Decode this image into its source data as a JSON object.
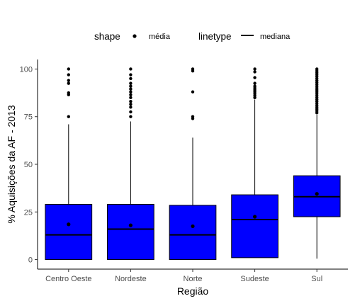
{
  "chart_data": {
    "type": "boxplot",
    "xlabel": "Região",
    "ylabel": "% Aquisições da AF - 2013",
    "ylim": [
      -5,
      105
    ],
    "yticks": [
      0,
      25,
      50,
      75,
      100
    ],
    "categories": [
      "Centro Oeste",
      "Nordeste",
      "Norte",
      "Sudeste",
      "Sul"
    ],
    "box_color": "#0000FF",
    "grid": false,
    "legend_position": "top",
    "legend": [
      {
        "title": "shape",
        "label": "média",
        "key": "point"
      },
      {
        "title": "linetype",
        "label": "mediana",
        "key": "line"
      }
    ],
    "boxes": [
      {
        "category": "Centro Oeste",
        "whisker_low": 0,
        "q1": 0,
        "median": 13,
        "q3": 29,
        "whisker_high": 71,
        "mean": 18.5,
        "outliers": [
          75,
          86.5,
          87.5,
          92.5,
          94,
          97,
          100
        ]
      },
      {
        "category": "Nordeste",
        "whisker_low": 0,
        "q1": 0,
        "median": 16,
        "q3": 29,
        "whisker_high": 72.5,
        "mean": 18,
        "outliers": [
          75,
          77.5,
          80,
          81.5,
          83,
          85,
          86.5,
          88,
          89.5,
          91,
          92.5,
          95,
          97,
          100
        ]
      },
      {
        "category": "Norte",
        "whisker_low": 0,
        "q1": 0,
        "median": 13,
        "q3": 28.5,
        "whisker_high": 64,
        "mean": 17.5,
        "outliers": [
          74,
          75,
          88,
          99,
          100
        ]
      },
      {
        "category": "Sudeste",
        "whisker_low": 1,
        "q1": 1,
        "median": 21,
        "q3": 34,
        "whisker_high": 84,
        "mean": 22.5,
        "outliers": [
          85,
          86,
          87,
          88,
          89,
          90,
          91,
          92.5,
          95.5,
          98.5,
          100
        ]
      },
      {
        "category": "Sul",
        "whisker_low": 0.5,
        "q1": 22.5,
        "median": 33,
        "q3": 44,
        "whisker_high": 76,
        "mean": 34.5,
        "outliers": [
          77,
          78,
          79,
          80,
          81,
          82,
          83,
          84,
          85,
          86,
          87,
          88,
          89,
          90,
          91,
          92,
          93,
          94,
          95,
          96,
          97,
          98,
          99,
          100
        ]
      }
    ]
  }
}
